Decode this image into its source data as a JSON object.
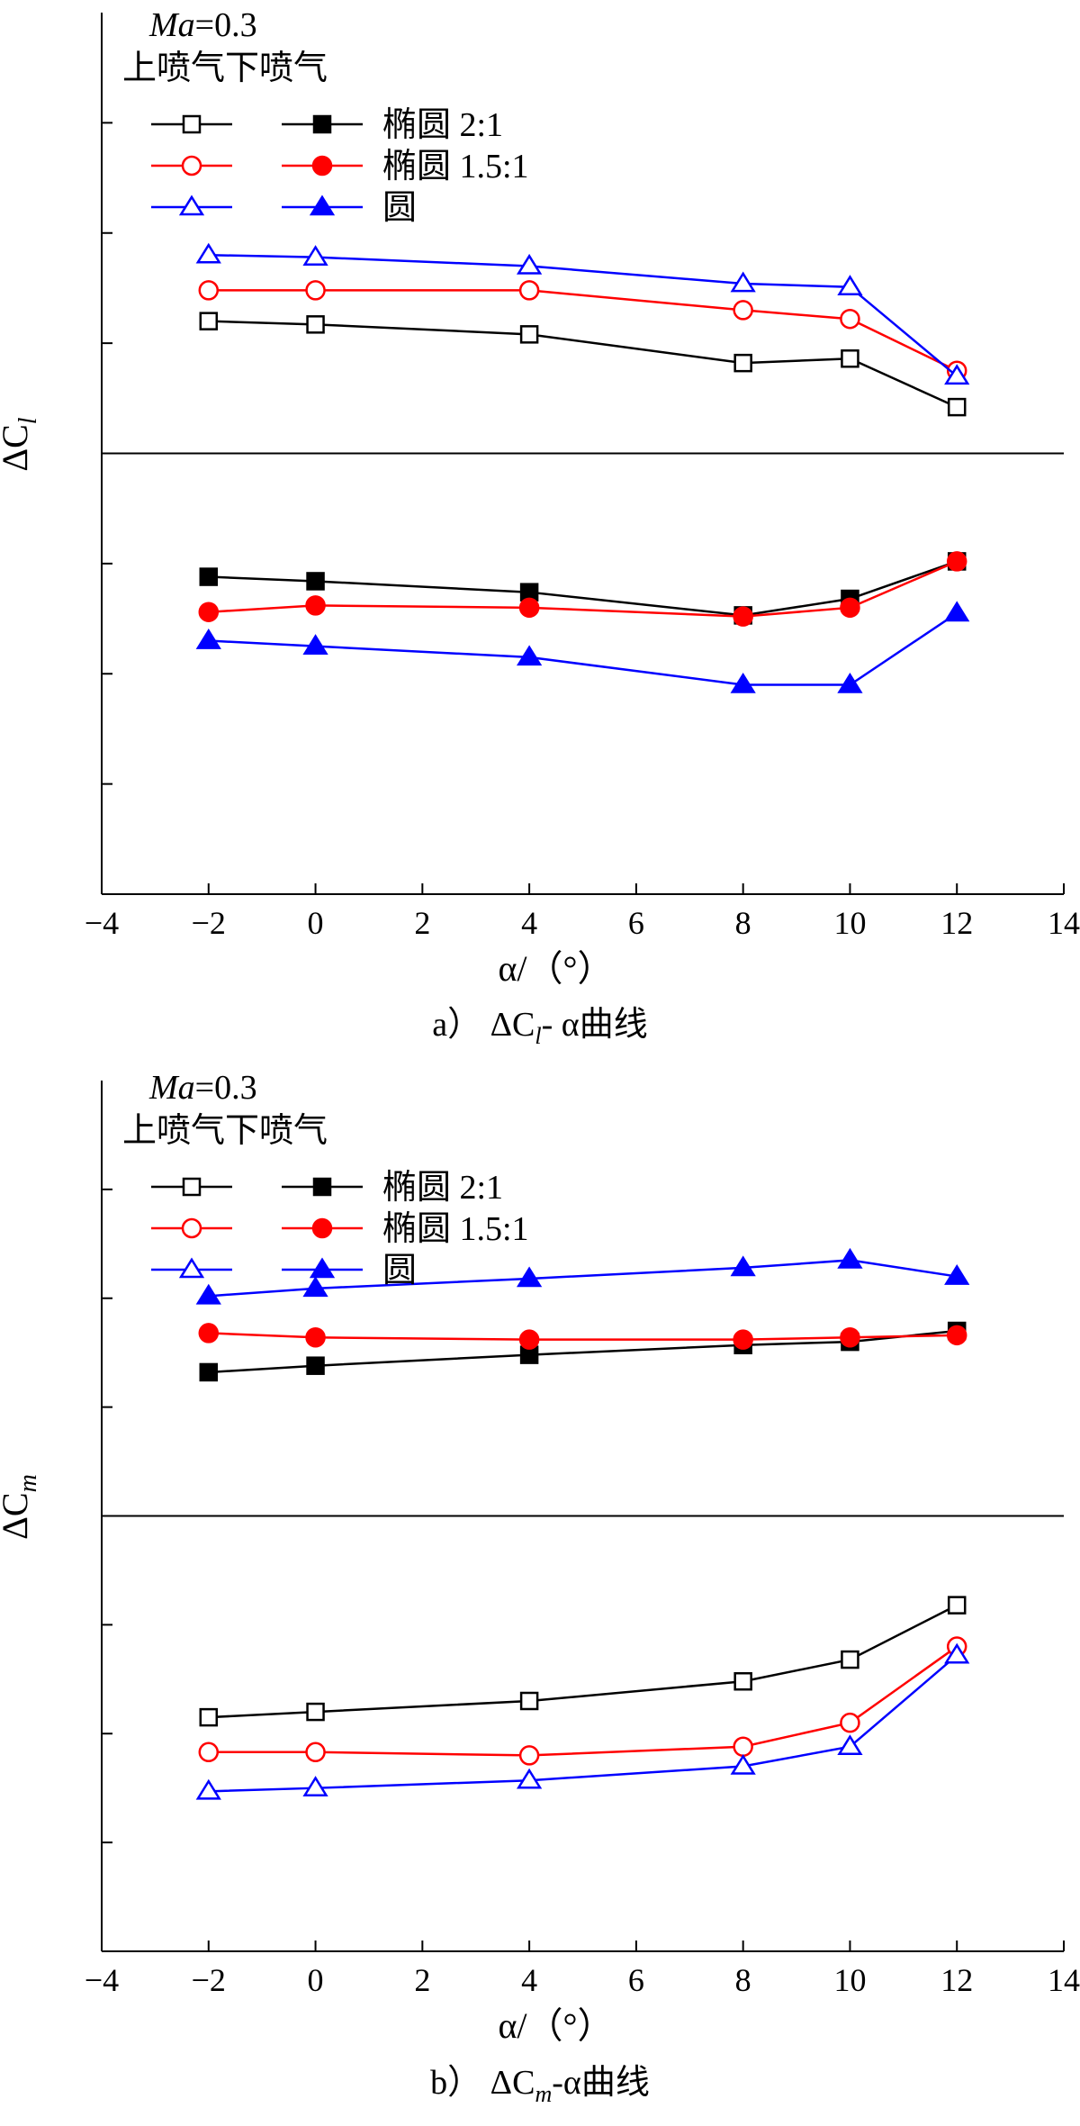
{
  "chart_data": [
    {
      "type": "line",
      "panel": "a",
      "caption": {
        "prefix": "a）",
        "symbol": "ΔC",
        "sub": "l",
        "suffix": "- α曲线"
      },
      "xlabel": "α/（°）",
      "ylabel": {
        "base": "ΔC",
        "sub": "l"
      },
      "xlim": [
        -4,
        14
      ],
      "xticks": [
        "−4",
        "−2",
        "0",
        "2",
        "4",
        "6",
        "8",
        "10",
        "12",
        "14"
      ],
      "ylim": [
        -4,
        4
      ],
      "zero_line": true,
      "annotation": {
        "italic": "Ma",
        "rest": "=0.3"
      },
      "legend_headers": [
        "上喷气",
        "下喷气"
      ],
      "legend_labels": [
        "椭圆 2:1",
        "椭圆 1.5:1",
        "圆"
      ],
      "x": [
        -2,
        0,
        4,
        8,
        10,
        12
      ],
      "series": [
        {
          "name": "上喷气 椭圆 2:1",
          "color": "#000000",
          "marker": "square",
          "filled": false,
          "values": [
            1.2,
            1.17,
            1.08,
            0.82,
            0.86,
            0.42
          ]
        },
        {
          "name": "上喷气 椭圆 1.5:1",
          "color": "#ff0000",
          "marker": "circle",
          "filled": false,
          "values": [
            1.48,
            1.48,
            1.48,
            1.3,
            1.22,
            0.75
          ]
        },
        {
          "name": "上喷气 圆",
          "color": "#0000ff",
          "marker": "triangle",
          "filled": false,
          "values": [
            1.8,
            1.78,
            1.7,
            1.54,
            1.51,
            0.7
          ]
        },
        {
          "name": "下喷气 椭圆 2:1",
          "color": "#000000",
          "marker": "square",
          "filled": true,
          "values": [
            -1.12,
            -1.16,
            -1.26,
            -1.47,
            -1.32,
            -0.98
          ]
        },
        {
          "name": "下喷气 椭圆 1.5:1",
          "color": "#ff0000",
          "marker": "circle",
          "filled": true,
          "values": [
            -1.44,
            -1.38,
            -1.4,
            -1.48,
            -1.4,
            -0.98
          ]
        },
        {
          "name": "下喷气 圆",
          "color": "#0000ff",
          "marker": "triangle",
          "filled": true,
          "values": [
            -1.7,
            -1.75,
            -1.85,
            -2.1,
            -2.1,
            -1.45
          ]
        }
      ]
    },
    {
      "type": "line",
      "panel": "b",
      "caption": {
        "prefix": "b）",
        "symbol": "ΔC",
        "sub": "m",
        "suffix": "-α曲线"
      },
      "xlabel": "α/（°）",
      "ylabel": {
        "base": "ΔC",
        "sub": "m"
      },
      "xlim": [
        -4,
        14
      ],
      "xticks": [
        "−4",
        "−2",
        "0",
        "2",
        "4",
        "6",
        "8",
        "10",
        "12",
        "14"
      ],
      "ylim": [
        -4,
        4
      ],
      "zero_line": true,
      "annotation": {
        "italic": "Ma",
        "rest": "=0.3"
      },
      "legend_headers": [
        "上喷气",
        "下喷气"
      ],
      "legend_labels": [
        "椭圆 2:1",
        "椭圆 1.5:1",
        "圆"
      ],
      "x": [
        -2,
        0,
        4,
        8,
        10,
        12
      ],
      "series": [
        {
          "name": "上喷气 椭圆 2:1",
          "color": "#000000",
          "marker": "square",
          "filled": false,
          "values": [
            -1.85,
            -1.8,
            -1.7,
            -1.52,
            -1.32,
            -0.82
          ]
        },
        {
          "name": "上喷气 椭圆 1.5:1",
          "color": "#ff0000",
          "marker": "circle",
          "filled": false,
          "values": [
            -2.17,
            -2.17,
            -2.2,
            -2.12,
            -1.9,
            -1.2
          ]
        },
        {
          "name": "上喷气 圆",
          "color": "#0000ff",
          "marker": "triangle",
          "filled": false,
          "values": [
            -2.53,
            -2.5,
            -2.43,
            -2.3,
            -2.12,
            -1.28
          ]
        },
        {
          "name": "下喷气 椭圆 2:1",
          "color": "#000000",
          "marker": "square",
          "filled": true,
          "values": [
            1.32,
            1.38,
            1.48,
            1.57,
            1.6,
            1.7
          ]
        },
        {
          "name": "下喷气 椭圆 1.5:1",
          "color": "#ff0000",
          "marker": "circle",
          "filled": true,
          "values": [
            1.68,
            1.64,
            1.62,
            1.62,
            1.64,
            1.66
          ]
        },
        {
          "name": "下喷气 圆",
          "color": "#0000ff",
          "marker": "triangle",
          "filled": true,
          "values": [
            2.02,
            2.09,
            2.18,
            2.28,
            2.35,
            2.2
          ]
        }
      ]
    }
  ]
}
